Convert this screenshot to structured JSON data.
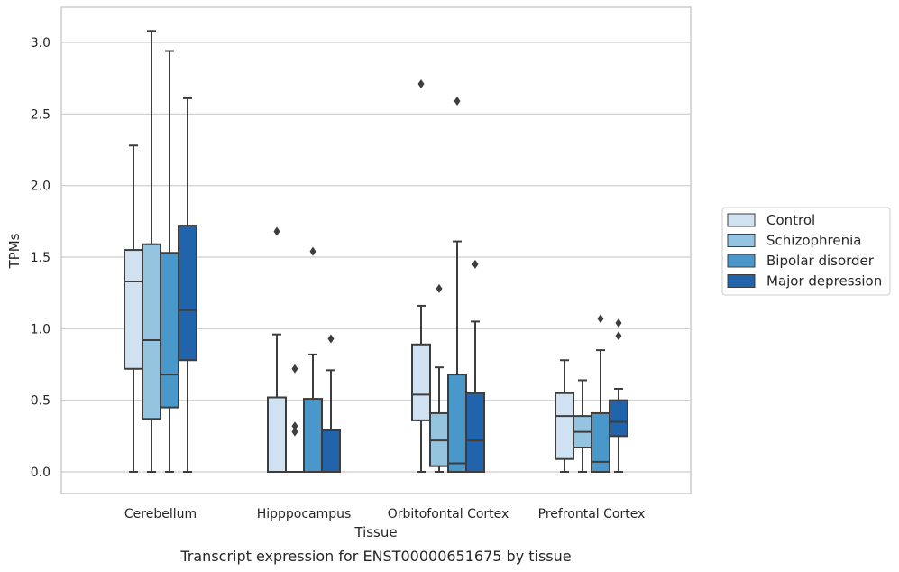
{
  "caption": "Transcript expression for ENST00000651675 by tissue",
  "chart_data": {
    "type": "box",
    "title": "",
    "xlabel": "Tissue",
    "ylabel": "TPMs",
    "ylim": [
      -0.15,
      3.25
    ],
    "yticks": [
      0.0,
      0.5,
      1.0,
      1.5,
      2.0,
      2.5,
      3.0
    ],
    "ytick_labels": [
      "0.0",
      "0.5",
      "1.0",
      "1.5",
      "2.0",
      "2.5",
      "3.0"
    ],
    "grid": "horizontal",
    "legend_position": "right",
    "categories": [
      "Cerebellum",
      "Hipppocampus",
      "Orbitofontal Cortex",
      "Prefrontal Cortex"
    ],
    "series": [
      {
        "name": "Control",
        "color": "#d0e1f2",
        "boxes": [
          {
            "whislo": 0.0,
            "q1": 0.72,
            "med": 1.33,
            "q3": 1.55,
            "whishi": 2.28,
            "fliers": []
          },
          {
            "whislo": 0.0,
            "q1": 0.0,
            "med": 0.0,
            "q3": 0.52,
            "whishi": 0.96,
            "fliers": [
              1.68
            ]
          },
          {
            "whislo": 0.0,
            "q1": 0.36,
            "med": 0.54,
            "q3": 0.89,
            "whishi": 1.16,
            "fliers": [
              2.71
            ]
          },
          {
            "whislo": 0.0,
            "q1": 0.09,
            "med": 0.39,
            "q3": 0.55,
            "whishi": 0.78,
            "fliers": []
          }
        ]
      },
      {
        "name": "Schizophrenia",
        "color": "#94c4df",
        "boxes": [
          {
            "whislo": 0.0,
            "q1": 0.37,
            "med": 0.92,
            "q3": 1.59,
            "whishi": 3.08,
            "fliers": []
          },
          {
            "whislo": 0.0,
            "q1": 0.0,
            "med": 0.0,
            "q3": 0.0,
            "whishi": 0.0,
            "fliers": [
              0.28,
              0.32,
              0.72
            ]
          },
          {
            "whislo": 0.0,
            "q1": 0.04,
            "med": 0.22,
            "q3": 0.41,
            "whishi": 0.73,
            "fliers": [
              1.28
            ]
          },
          {
            "whislo": 0.0,
            "q1": 0.17,
            "med": 0.28,
            "q3": 0.39,
            "whishi": 0.64,
            "fliers": []
          }
        ]
      },
      {
        "name": "Bipolar disorder",
        "color": "#4a98c9",
        "boxes": [
          {
            "whislo": 0.0,
            "q1": 0.45,
            "med": 0.68,
            "q3": 1.53,
            "whishi": 2.94,
            "fliers": []
          },
          {
            "whislo": 0.0,
            "q1": 0.0,
            "med": 0.0,
            "q3": 0.51,
            "whishi": 0.82,
            "fliers": [
              1.54
            ]
          },
          {
            "whislo": 0.0,
            "q1": 0.0,
            "med": 0.06,
            "q3": 0.68,
            "whishi": 1.61,
            "fliers": [
              2.59
            ]
          },
          {
            "whislo": 0.0,
            "q1": 0.0,
            "med": 0.07,
            "q3": 0.41,
            "whishi": 0.85,
            "fliers": [
              1.07
            ]
          }
        ]
      },
      {
        "name": "Major depression",
        "color": "#2164ab",
        "boxes": [
          {
            "whislo": 0.0,
            "q1": 0.78,
            "med": 1.13,
            "q3": 1.72,
            "whishi": 2.61,
            "fliers": []
          },
          {
            "whislo": 0.0,
            "q1": 0.0,
            "med": 0.0,
            "q3": 0.29,
            "whishi": 0.71,
            "fliers": [
              0.93
            ]
          },
          {
            "whislo": 0.0,
            "q1": 0.0,
            "med": 0.22,
            "q3": 0.55,
            "whishi": 1.05,
            "fliers": [
              1.45
            ]
          },
          {
            "whislo": 0.0,
            "q1": 0.25,
            "med": 0.35,
            "q3": 0.5,
            "whishi": 0.58,
            "fliers": [
              0.95,
              1.04
            ]
          }
        ]
      }
    ]
  }
}
